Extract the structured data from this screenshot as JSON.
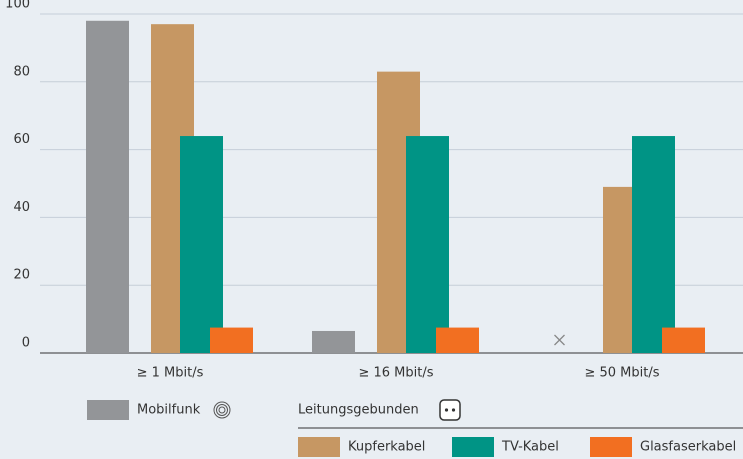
{
  "chart_data": {
    "type": "bar",
    "categories": [
      "≥ 1 Mbit/s",
      "≥ 16 Mbit/s",
      "≥ 50 Mbit/s"
    ],
    "series": [
      {
        "name": "Mobilfunk",
        "color": "#939598",
        "values": [
          98,
          6.5,
          null
        ]
      },
      {
        "name": "Kupferkabel",
        "color": "#c69763",
        "values": [
          97,
          83,
          49
        ]
      },
      {
        "name": "TV-Kabel",
        "color": "#009485",
        "values": [
          64,
          64,
          64
        ]
      },
      {
        "name": "Glasfaserkabel",
        "color": "#f26f21",
        "values": [
          7.5,
          7.5,
          7.5
        ]
      }
    ],
    "legend_group_title": "Leitungsgebunden",
    "ylim": [
      0,
      100
    ],
    "yticks": [
      0,
      20,
      40,
      60,
      80,
      100
    ],
    "grid": true
  }
}
